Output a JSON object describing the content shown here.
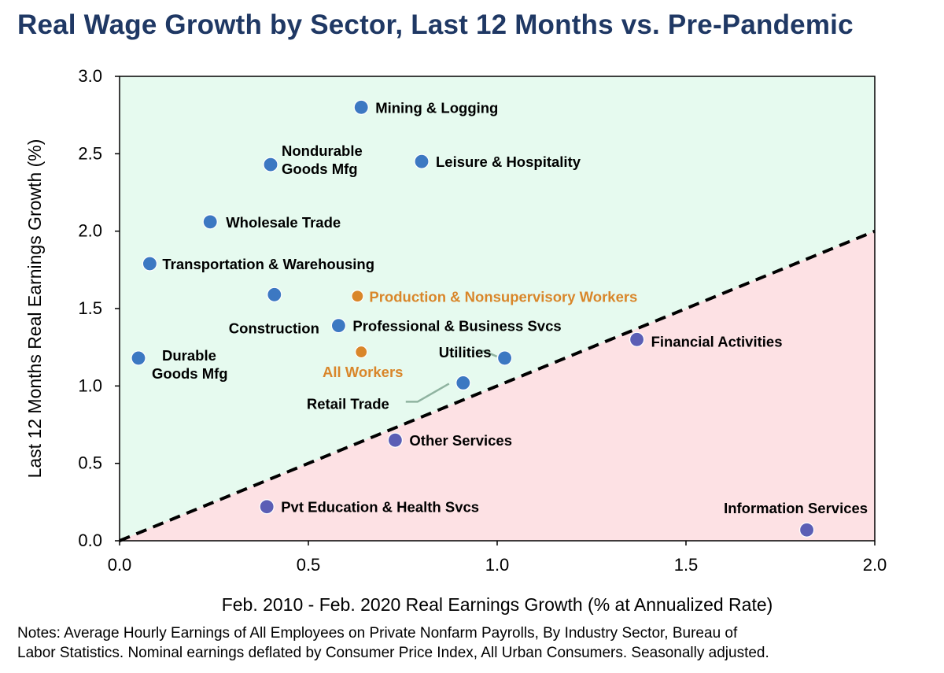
{
  "title": "Real Wage Growth by Sector, Last 12 Months vs. Pre-Pandemic",
  "notes": [
    "Notes: Average Hourly Earnings of All Employees on Private Nonfarm Payrolls, By Industry Sector, Bureau of",
    "Labor Statistics. Nominal earnings deflated by Consumer Price Index, All Urban Consumers. Seasonally adjusted."
  ],
  "colors": {
    "above_region": "#e6faef",
    "below_region": "#fde1e4",
    "blue_point": "#3c78c2",
    "purple_point": "#5b5eb5",
    "orange_point": "#d9862a",
    "orange_text": "#d9862a",
    "leader_line": "#8fb3a0",
    "diagonal": "#000000"
  },
  "chart_data": {
    "type": "scatter",
    "xlabel": "Feb. 2010 - Feb. 2020 Real Earnings Growth (% at Annualized Rate)",
    "ylabel": "Last 12 Months Real Earnings Growth (%)",
    "xlim": [
      0.0,
      2.0
    ],
    "ylim": [
      0.0,
      3.0
    ],
    "x_ticks": [
      "0.0",
      "0.5",
      "1.0",
      "1.5",
      "2.0"
    ],
    "y_ticks": [
      "0.0",
      "0.5",
      "1.0",
      "1.5",
      "2.0",
      "2.5",
      "3.0"
    ],
    "reference_line": {
      "style": "dashed",
      "from": [
        0.0,
        0.0
      ],
      "to": [
        2.0,
        2.0
      ]
    },
    "grid": false,
    "points": [
      {
        "label": "Mining & Logging",
        "x": 0.64,
        "y": 2.8,
        "group": "above"
      },
      {
        "label": "Nondurable Goods Mfg",
        "x": 0.4,
        "y": 2.43,
        "group": "above"
      },
      {
        "label": "Leisure & Hospitality",
        "x": 0.8,
        "y": 2.45,
        "group": "above"
      },
      {
        "label": "Wholesale Trade",
        "x": 0.24,
        "y": 2.06,
        "group": "above"
      },
      {
        "label": "Transportation & Warehousing",
        "x": 0.08,
        "y": 1.79,
        "group": "above"
      },
      {
        "label": "Construction",
        "x": 0.41,
        "y": 1.59,
        "group": "above"
      },
      {
        "label": "Production & Nonsupervisory Workers",
        "x": 0.63,
        "y": 1.58,
        "group": "aggregate"
      },
      {
        "label": "Professional & Business Svcs",
        "x": 0.58,
        "y": 1.39,
        "group": "above"
      },
      {
        "label": "Durable Goods Mfg",
        "x": 0.05,
        "y": 1.18,
        "group": "above"
      },
      {
        "label": "All Workers",
        "x": 0.64,
        "y": 1.22,
        "group": "aggregate"
      },
      {
        "label": "Utilities",
        "x": 1.02,
        "y": 1.18,
        "group": "above"
      },
      {
        "label": "Retail Trade",
        "x": 0.91,
        "y": 1.02,
        "group": "above"
      },
      {
        "label": "Financial Activities",
        "x": 1.37,
        "y": 1.3,
        "group": "below"
      },
      {
        "label": "Other Services",
        "x": 0.73,
        "y": 0.65,
        "group": "below"
      },
      {
        "label": "Pvt Education & Health Svcs",
        "x": 0.39,
        "y": 0.22,
        "group": "below"
      },
      {
        "label": "Information Services",
        "x": 1.82,
        "y": 0.07,
        "group": "below"
      }
    ]
  }
}
